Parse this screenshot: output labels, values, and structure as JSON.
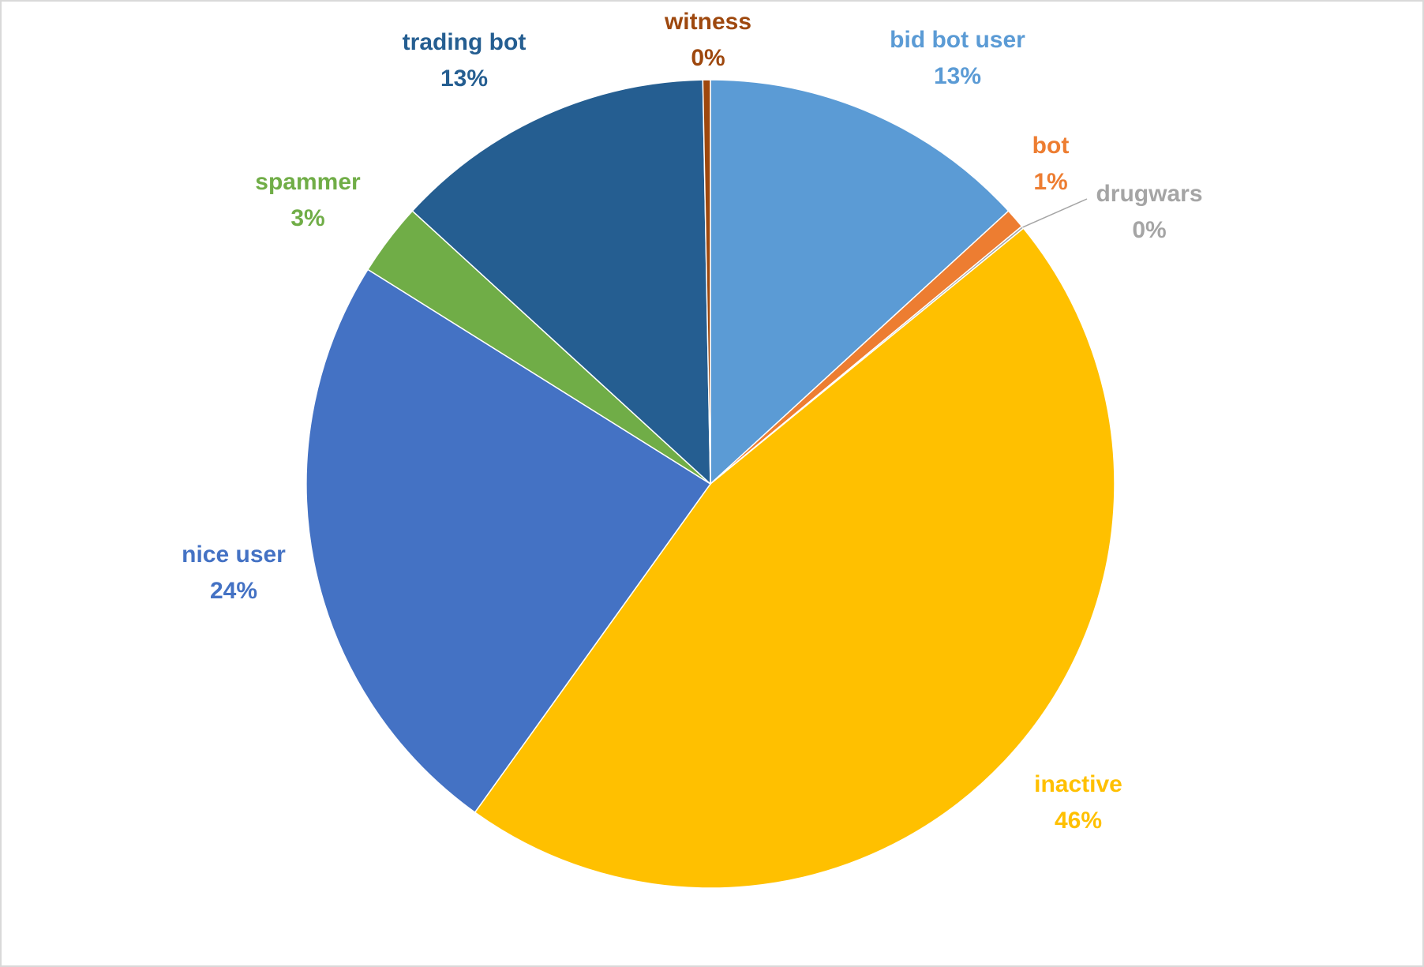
{
  "chart_data": {
    "type": "pie",
    "categories": [
      "bid bot user",
      "bot",
      "drugwars",
      "inactive",
      "nice user",
      "spammer",
      "trading bot",
      "witness"
    ],
    "values": [
      13.2,
      0.8,
      0.1,
      45.8,
      24.0,
      2.9,
      12.9,
      0.3
    ],
    "value_labels": [
      "13%",
      "1%",
      "0%",
      "46%",
      "24%",
      "3%",
      "13%",
      "0%"
    ],
    "colors": [
      "#5b9bd5",
      "#ed7d31",
      "#a5a5a5",
      "#ffc000",
      "#4472c4",
      "#70ad47",
      "#255e91",
      "#9e480e"
    ]
  }
}
